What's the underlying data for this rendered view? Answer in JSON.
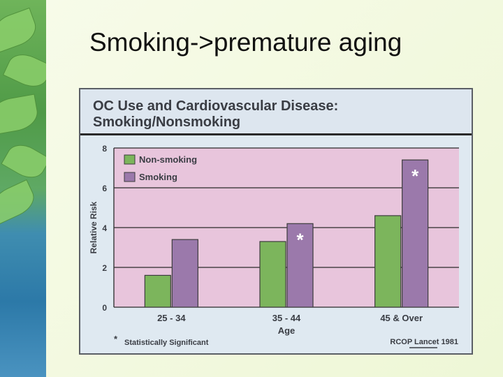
{
  "slide": {
    "title": "Smoking->premature aging"
  },
  "chart_data": {
    "type": "bar",
    "title": "OC Use and Cardiovascular Disease: Smoking/Nonsmoking",
    "xlabel": "Age",
    "ylabel": "Relative Risk",
    "categories": [
      "25 - 34",
      "35 - 44",
      "45 & Over"
    ],
    "series": [
      {
        "name": "Non-smoking",
        "values": [
          1.6,
          3.3,
          4.6
        ],
        "color": "#7cb55c"
      },
      {
        "name": "Smoking",
        "values": [
          3.4,
          4.2,
          7.4
        ],
        "color": "#9b79ab"
      }
    ],
    "ylim": [
      0,
      8
    ],
    "yticks": [
      0,
      2,
      4,
      6,
      8
    ],
    "grid": true,
    "legend_position": "top-left",
    "significance_marker": "*",
    "significant_points": [
      {
        "category_index": 1,
        "series_index": 1
      },
      {
        "category_index": 2,
        "series_index": 1
      }
    ],
    "footnote": "Statistically Significant",
    "source": "RCOP Lancet 1981",
    "colors": {
      "plot_background": "#e8c5dc",
      "card_background": "#dfe9f1",
      "axis": "#2a2a2a",
      "text": "#3a3d44"
    }
  }
}
